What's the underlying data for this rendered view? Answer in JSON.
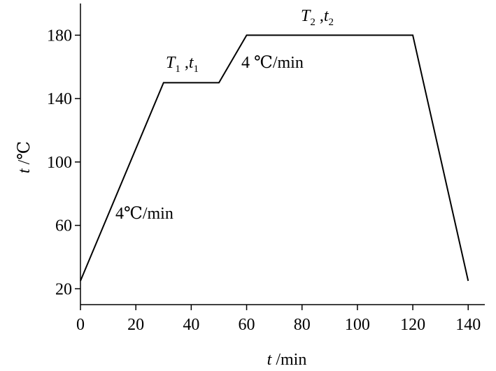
{
  "chart_data": {
    "type": "line",
    "x": [
      0,
      30,
      50,
      60,
      120,
      140
    ],
    "series": [
      {
        "color": "#000000",
        "values": [
          25,
          150,
          150,
          180,
          180,
          25
        ]
      }
    ],
    "xlim": [
      0,
      146
    ],
    "ylim": [
      10,
      200
    ],
    "xticks": [
      0,
      20,
      40,
      60,
      80,
      100,
      120,
      140
    ],
    "yticks": [
      20,
      60,
      100,
      140,
      180
    ],
    "x_label": [
      "t",
      " /min"
    ],
    "y_label": [
      "t",
      " /℃"
    ],
    "annotations": [
      [
        "T",
        "1",
        " ,",
        "t",
        "1"
      ],
      [
        "4 ℃/min"
      ],
      [
        "T",
        "2",
        " ,",
        "t",
        "2"
      ],
      [
        "4℃/min"
      ]
    ]
  }
}
